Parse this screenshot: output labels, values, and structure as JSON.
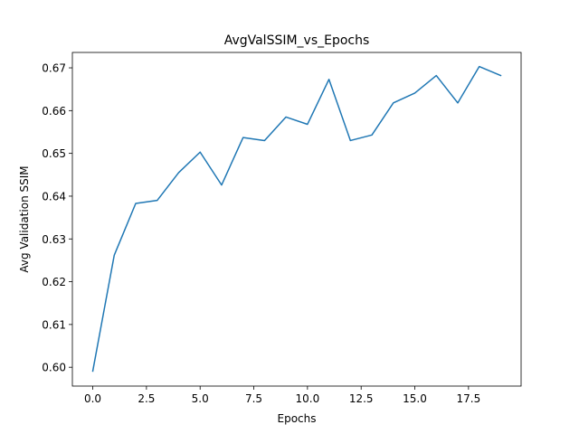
{
  "chart_data": {
    "type": "line",
    "title": "AvgValSSIM_vs_Epochs",
    "xlabel": "Epochs",
    "ylabel": "Avg Validation SSIM",
    "xlim": [
      -0.95,
      19.95
    ],
    "ylim": [
      0.5956,
      0.6736
    ],
    "x_ticks": [
      0.0,
      2.5,
      5.0,
      7.5,
      10.0,
      12.5,
      15.0,
      17.5
    ],
    "x_tick_labels": [
      "0.0",
      "2.5",
      "5.0",
      "7.5",
      "10.0",
      "12.5",
      "15.0",
      "17.5"
    ],
    "y_ticks": [
      0.6,
      0.61,
      0.62,
      0.63,
      0.64,
      0.65,
      0.66,
      0.67
    ],
    "y_tick_labels": [
      "0.60",
      "0.61",
      "0.62",
      "0.63",
      "0.64",
      "0.65",
      "0.66",
      "0.67"
    ],
    "grid": false,
    "legend": "none",
    "series": [
      {
        "color": "#1f77b4",
        "x": [
          0,
          1,
          2,
          3,
          4,
          5,
          6,
          7,
          8,
          9,
          10,
          11,
          12,
          13,
          14,
          15,
          16,
          17,
          18,
          19
        ],
        "y": [
          0.5991,
          0.6262,
          0.6383,
          0.639,
          0.6455,
          0.6503,
          0.6426,
          0.6537,
          0.653,
          0.6585,
          0.6568,
          0.6673,
          0.653,
          0.6543,
          0.6618,
          0.6641,
          0.6682,
          0.6618,
          0.6703,
          0.6682
        ]
      }
    ]
  }
}
